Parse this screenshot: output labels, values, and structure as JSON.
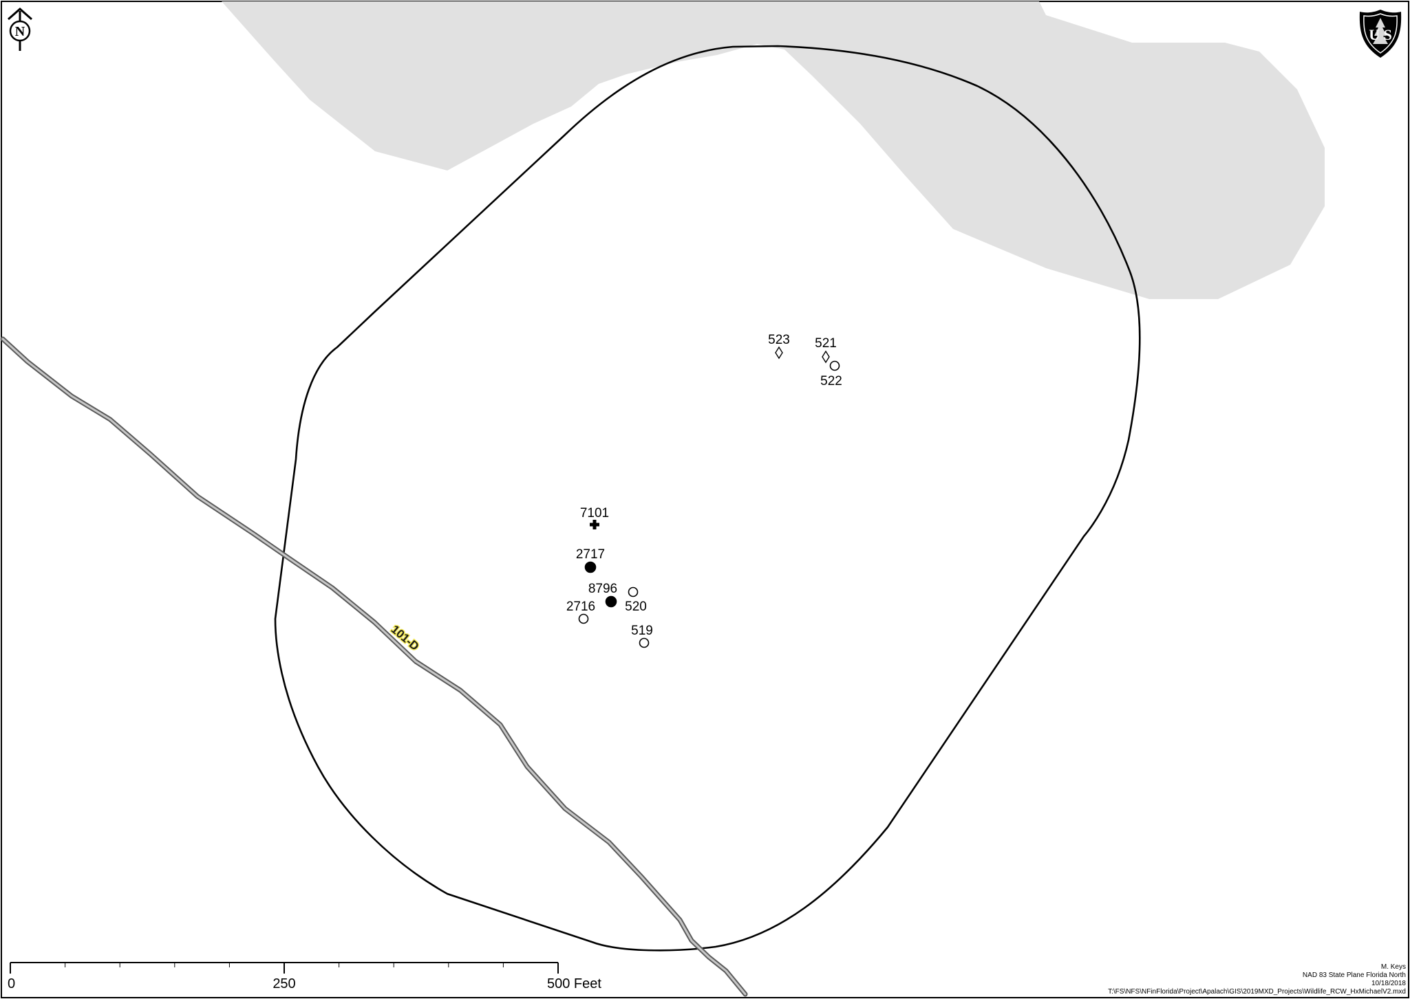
{
  "north_arrow": {
    "letter": "N"
  },
  "agency_logo": {
    "lettering": "U S",
    "icon": "usfs-shield-icon"
  },
  "colors": {
    "shaded_area": "#e1e1e1",
    "road_casing": "#5a5a5a",
    "road_fill": "#c8c8c8",
    "road_label_halo": "#f4ea5a"
  },
  "road": {
    "label": "101-D"
  },
  "points": [
    {
      "id": "523",
      "label": "523",
      "symbol": "diamond-open"
    },
    {
      "id": "521",
      "label": "521",
      "symbol": "diamond-open"
    },
    {
      "id": "522",
      "label": "522",
      "symbol": "circle-open"
    },
    {
      "id": "7101",
      "label": "7101",
      "symbol": "cross"
    },
    {
      "id": "2717",
      "label": "2717",
      "symbol": "circle-filled"
    },
    {
      "id": "8796",
      "label": "8796",
      "symbol": "circle-filled"
    },
    {
      "id": "520",
      "label": "520",
      "symbol": "circle-open"
    },
    {
      "id": "2716",
      "label": "2716",
      "symbol": "circle-open"
    },
    {
      "id": "519",
      "label": "519",
      "symbol": "circle-open"
    }
  ],
  "scale_bar": {
    "ticks": [
      "0",
      "250",
      "500 Feet"
    ]
  },
  "metadata": {
    "author": "M. Keys",
    "projection": "NAD 83 State Plane Florida North",
    "date": "10/18/2018",
    "path": "T:\\FS\\NFS\\NFinFlorida\\Project\\Apalach\\GIS\\2019MXD_Projects\\Wildlife_RCW_HxMichaelV2.mxd"
  }
}
